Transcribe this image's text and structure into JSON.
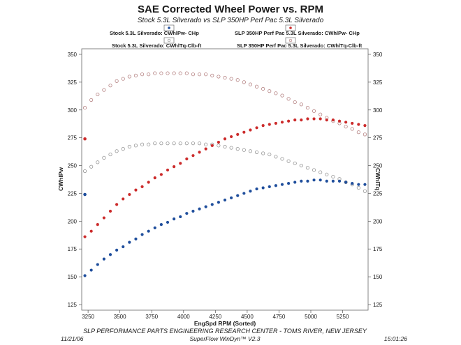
{
  "chart_data": {
    "type": "scatter",
    "title": "SAE Corrected Wheel Power vs. RPM",
    "subtitle": "Stock 5.3L Silverado vs SLP 350HP Perf Pac 5.3L Silverado",
    "xlabel": "EngSpd  RPM   (Sorted)",
    "ylabel_left": "CWhlPw",
    "ylabel_right": "CWhlTq",
    "xlim": [
      3200,
      5450
    ],
    "ylim": [
      120,
      355
    ],
    "x_ticks": [
      "3250",
      "3500",
      "3750",
      "4000",
      "4250",
      "4500",
      "4750",
      "5000",
      "5250"
    ],
    "y_ticks": [
      "125",
      "150",
      "175",
      "200",
      "225",
      "250",
      "275",
      "300",
      "325",
      "350"
    ],
    "legend": [
      {
        "label": "Stock 5.3L Silverado: CWhlPw- CHp",
        "series": "stock_hp"
      },
      {
        "label": "SLP 350HP Perf Pac 5.3L Silverado: CWhlPw- CHp",
        "series": "slp_hp"
      },
      {
        "label": "Stock 5.3L Silverado: CWhlTq-Clb-ft",
        "series": "stock_tq"
      },
      {
        "label": "SLP 350HP Perf Pac 5.3L Silverado: CWhlTq-Clb-ft",
        "series": "slp_tq"
      }
    ],
    "x": [
      3225,
      3275,
      3325,
      3375,
      3425,
      3475,
      3525,
      3575,
      3625,
      3675,
      3725,
      3775,
      3825,
      3875,
      3925,
      3975,
      4025,
      4075,
      4125,
      4175,
      4225,
      4275,
      4325,
      4375,
      4425,
      4475,
      4525,
      4575,
      4625,
      4675,
      4725,
      4775,
      4825,
      4875,
      4925,
      4975,
      5025,
      5075,
      5125,
      5175,
      5225,
      5275,
      5325,
      5375,
      5425
    ],
    "series": [
      {
        "name": "Stock 5.3L Silverado: CWhlPw- CHp",
        "key": "stock_hp",
        "color": "#1f4e9c",
        "filled": true,
        "values": [
          151,
          156,
          161,
          166,
          170,
          174,
          177,
          181,
          184,
          188,
          191,
          194,
          197,
          199,
          202,
          204,
          207,
          209,
          211,
          213,
          215,
          217,
          219,
          221,
          223,
          225,
          227,
          229,
          230,
          231,
          232,
          233,
          234,
          235,
          236,
          236,
          237,
          237,
          236,
          236,
          236,
          235,
          234,
          233,
          233
        ],
        "start_point": 224
      },
      {
        "name": "SLP 350HP Perf Pac 5.3L Silverado: CWhlPw- CHp",
        "key": "slp_hp",
        "color": "#cc2b2b",
        "filled": true,
        "values": [
          186,
          191,
          197,
          203,
          209,
          215,
          220,
          224,
          228,
          231,
          235,
          239,
          242,
          246,
          249,
          252,
          256,
          259,
          262,
          265,
          268,
          271,
          274,
          276,
          278,
          280,
          282,
          284,
          286,
          287,
          288,
          289,
          290,
          291,
          291,
          292,
          292,
          292,
          291,
          291,
          290,
          289,
          288,
          287,
          286
        ],
        "start_point": 274
      },
      {
        "name": "Stock 5.3L Silverado: CWhlTq-Clb-ft",
        "key": "stock_tq",
        "color": "#8f8f8f",
        "filled": false,
        "values": [
          245,
          249,
          253,
          257,
          260,
          263,
          265,
          267,
          268,
          269,
          269,
          270,
          270,
          270,
          270,
          270,
          270,
          270,
          270,
          269,
          269,
          268,
          267,
          266,
          265,
          264,
          263,
          262,
          261,
          260,
          258,
          256,
          254,
          252,
          250,
          248,
          246,
          244,
          242,
          240,
          238,
          235,
          233,
          230,
          227
        ],
        "start_point": null
      },
      {
        "name": "SLP 350HP Perf Pac 5.3L Silverado: CWhlTq-Clb-ft",
        "key": "slp_tq",
        "color": "#b07a7a",
        "filled": false,
        "values": [
          302,
          309,
          314,
          318,
          322,
          326,
          328,
          330,
          331,
          332,
          332,
          333,
          333,
          333,
          333,
          333,
          333,
          332,
          332,
          332,
          331,
          330,
          329,
          328,
          327,
          325,
          323,
          321,
          319,
          317,
          315,
          313,
          310,
          307,
          305,
          302,
          299,
          296,
          293,
          290,
          288,
          285,
          283,
          280,
          278
        ],
        "start_point": null
      }
    ]
  },
  "footer": {
    "center": "SLP PERFORMANCE PARTS ENGINEERING RESEARCH CENTER - TOMS RIVER, NEW JERSEY",
    "date": "11/21/06",
    "software": "SuperFlow WinDyn™ V2.3",
    "time": "15:01:26"
  }
}
